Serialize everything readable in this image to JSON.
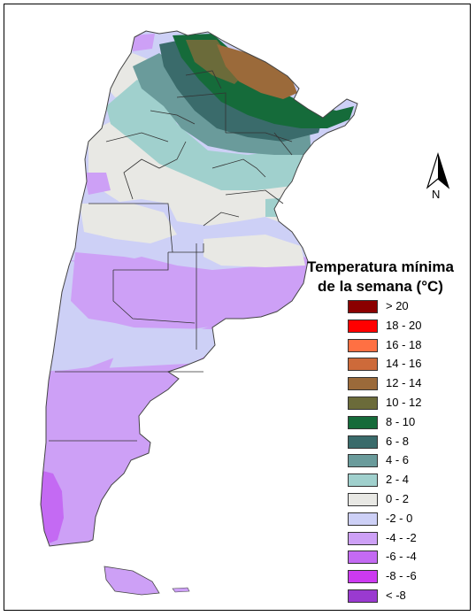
{
  "legend": {
    "title_line1": "Temperatura mínima",
    "title_line2": "de la semana (°C)",
    "items": [
      {
        "label": "> 20",
        "color": "#8b0000"
      },
      {
        "label": "18 - 20",
        "color": "#ff0000"
      },
      {
        "label": "16 - 18",
        "color": "#ff7043"
      },
      {
        "label": "14 - 16",
        "color": "#cd6a3a"
      },
      {
        "label": "12 - 14",
        "color": "#9b6a3a"
      },
      {
        "label": "10 - 12",
        "color": "#6b6b3a"
      },
      {
        "label": "8 - 10",
        "color": "#156b3a"
      },
      {
        "label": "6 - 8",
        "color": "#3a6b6b"
      },
      {
        "label": "4 - 6",
        "color": "#6a9b9b"
      },
      {
        "label": "2 - 4",
        "color": "#a0d0cd"
      },
      {
        "label": "0 - 2",
        "color": "#e8e8e4"
      },
      {
        "label": "-2 - 0",
        "color": "#cdd0f6"
      },
      {
        "label": "-4 - -2",
        "color": "#cda0f6"
      },
      {
        "label": "-6 - -4",
        "color": "#c46af3"
      },
      {
        "label": "-8 - -6",
        "color": "#cc3af0"
      },
      {
        "label": "< -8",
        "color": "#9a3ad0"
      }
    ]
  },
  "compass": {
    "label": "N",
    "icon": "north-arrow-icon"
  }
}
